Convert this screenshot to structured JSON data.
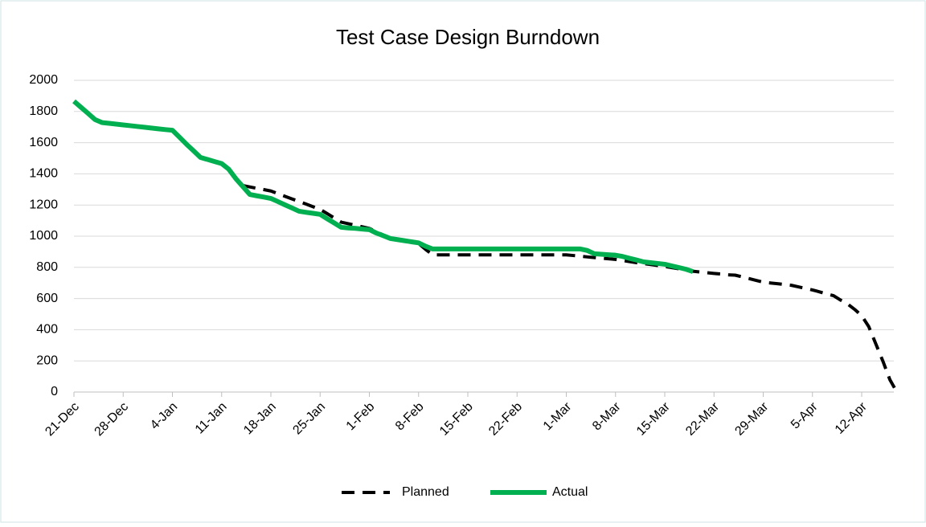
{
  "chart_data": {
    "type": "line",
    "title": "Test Case Design Burndown",
    "categories": [
      "21-Dec",
      null,
      null,
      null,
      null,
      null,
      null,
      "28-Dec",
      null,
      null,
      null,
      null,
      null,
      null,
      "4-Jan",
      null,
      null,
      null,
      null,
      null,
      null,
      "11-Jan",
      null,
      null,
      null,
      null,
      null,
      null,
      "18-Jan",
      null,
      null,
      null,
      null,
      null,
      null,
      "25-Jan",
      null,
      null,
      null,
      null,
      null,
      null,
      "1-Feb",
      null,
      null,
      null,
      null,
      null,
      null,
      "8-Feb",
      null,
      null,
      null,
      null,
      null,
      null,
      "15-Feb",
      null,
      null,
      null,
      null,
      null,
      null,
      "22-Feb",
      null,
      null,
      null,
      null,
      null,
      null,
      "1-Mar",
      null,
      null,
      null,
      null,
      null,
      null,
      "8-Mar",
      null,
      null,
      null,
      null,
      null,
      null,
      "15-Mar",
      null,
      null,
      null,
      null,
      null,
      null,
      "22-Mar",
      null,
      null,
      null,
      null,
      null,
      null,
      "29-Mar",
      null,
      null,
      null,
      null,
      null,
      null,
      "5-Apr",
      null,
      null,
      null,
      null,
      null,
      null,
      "12-Apr",
      null,
      null,
      null,
      null,
      null
    ],
    "series": [
      {
        "name": "Planned",
        "color": "#000000",
        "dashed": true,
        "values": [
          null,
          null,
          null,
          null,
          null,
          null,
          null,
          null,
          null,
          null,
          null,
          null,
          null,
          null,
          null,
          null,
          null,
          null,
          null,
          null,
          null,
          null,
          null,
          null,
          1325,
          1316,
          1307,
          1299,
          1290,
          1273,
          1256,
          1239,
          1223,
          1206,
          1189,
          1172,
          1145,
          1117,
          1090,
          1080,
          1070,
          1060,
          1050,
          1028,
          1007,
          985,
          977,
          969,
          961,
          953,
          915,
          880,
          880,
          880,
          880,
          880,
          880,
          880,
          880,
          880,
          880,
          880,
          880,
          880,
          880,
          880,
          880,
          880,
          880,
          880,
          880,
          876,
          872,
          867,
          863,
          859,
          855,
          851,
          844,
          837,
          830,
          824,
          818,
          812,
          806,
          798,
          791,
          783,
          775,
          770,
          766,
          761,
          757,
          752,
          750,
          739,
          728,
          716,
          705,
          700,
          695,
          690,
          685,
          675,
          665,
          655,
          643,
          630,
          618,
          590,
          565,
          530,
          490,
          420,
          310,
          200,
          80,
          0
        ]
      },
      {
        "name": "Actual",
        "color": "#00b050",
        "dashed": false,
        "values": [
          1866,
          1827,
          1788,
          1748,
          1729,
          1724,
          1719,
          1714,
          1709,
          1704,
          1699,
          1694,
          1689,
          1684,
          1680,
          1635,
          1590,
          1548,
          1505,
          1492,
          1479,
          1466,
          1430,
          1370,
          1319,
          1268,
          1259,
          1251,
          1242,
          1222,
          1201,
          1181,
          1160,
          1153,
          1147,
          1140,
          1112,
          1085,
          1057,
          1053,
          1050,
          1046,
          1042,
          1020,
          1003,
          985,
          978,
          971,
          964,
          957,
          935,
          918,
          918,
          918,
          918,
          918,
          918,
          918,
          918,
          918,
          918,
          918,
          918,
          918,
          918,
          918,
          918,
          918,
          918,
          918,
          918,
          918,
          918,
          908,
          887,
          884,
          881,
          878,
          870,
          858,
          847,
          835,
          830,
          825,
          820,
          809,
          799,
          788,
          773,
          null,
          null,
          null,
          null,
          null,
          null,
          null,
          null,
          null,
          null,
          null,
          null,
          null,
          null,
          null,
          null,
          null,
          null,
          null,
          null,
          null,
          null,
          null,
          null,
          null,
          null,
          null,
          null,
          null
        ]
      }
    ],
    "ylim": [
      0,
      2000
    ],
    "yticks": [
      0,
      200,
      400,
      600,
      800,
      1000,
      1200,
      1400,
      1600,
      1800,
      2000
    ],
    "grid": true,
    "legend": "bottom"
  }
}
